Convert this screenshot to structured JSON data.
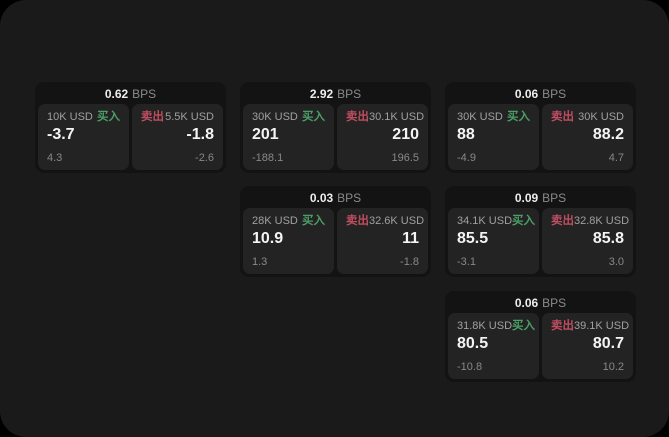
{
  "labels": {
    "bps": "BPS",
    "buy": "买入",
    "sell": "卖出"
  },
  "colors": {
    "buy_accent": "#4b9f66",
    "sell_accent": "#bf4d60",
    "window_background": "#1a1a1a",
    "card_background": "#131313",
    "panel_background": "#232323"
  },
  "cards": [
    {
      "spread": "0.62",
      "buy": {
        "amount": "10K USD",
        "price": "-3.7",
        "delta": "4.3"
      },
      "sell": {
        "amount": "5.5K USD",
        "price": "-1.8",
        "delta": "-2.6"
      }
    },
    {
      "spread": "2.92",
      "buy": {
        "amount": "30K USD",
        "price": "201",
        "delta": "-188.1"
      },
      "sell": {
        "amount": "30.1K USD",
        "price": "210",
        "delta": "196.5"
      }
    },
    {
      "spread": "0.06",
      "buy": {
        "amount": "30K USD",
        "price": "88",
        "delta": "-4.9"
      },
      "sell": {
        "amount": "30K USD",
        "price": "88.2",
        "delta": "4.7"
      }
    },
    {
      "spread": "0.03",
      "buy": {
        "amount": "28K USD",
        "price": "10.9",
        "delta": "1.3"
      },
      "sell": {
        "amount": "32.6K USD",
        "price": "11",
        "delta": "-1.8"
      }
    },
    {
      "spread": "0.09",
      "buy": {
        "amount": "34.1K USD",
        "price": "85.5",
        "delta": "-3.1"
      },
      "sell": {
        "amount": "32.8K USD",
        "price": "85.8",
        "delta": "3.0"
      }
    },
    {
      "spread": "0.06",
      "buy": {
        "amount": "31.8K USD",
        "price": "80.5",
        "delta": "-10.8"
      },
      "sell": {
        "amount": "39.1K USD",
        "price": "80.7",
        "delta": "10.2"
      }
    }
  ]
}
